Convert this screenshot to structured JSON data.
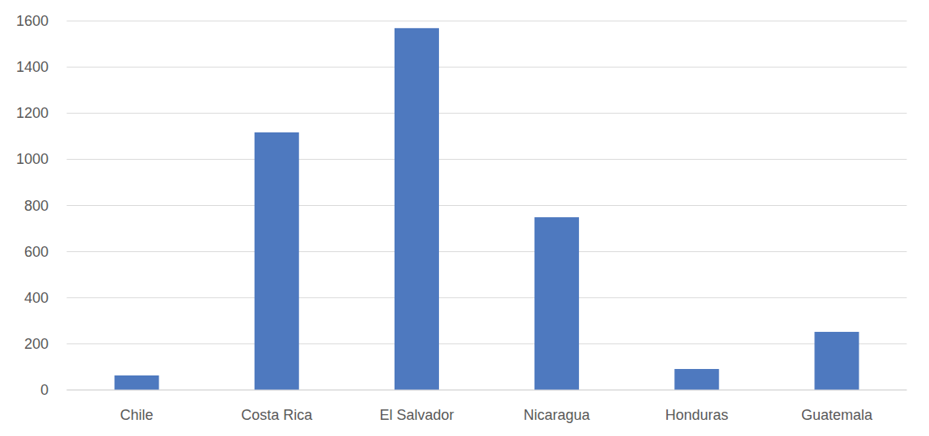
{
  "chart_data": {
    "type": "bar",
    "categories": [
      "Chile",
      "Costa Rica",
      "El Salvador",
      "Nicaragua",
      "Honduras",
      "Guatemala"
    ],
    "values": [
      63,
      1117,
      1569,
      749,
      91,
      252
    ],
    "color": "#4e79bf",
    "ylim": [
      0,
      1600
    ],
    "yticks": [
      0,
      200,
      400,
      600,
      800,
      1000,
      1200,
      1400,
      1600
    ],
    "grid": true
  }
}
